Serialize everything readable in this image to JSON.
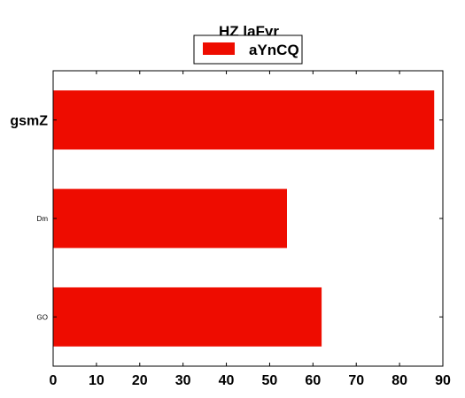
{
  "chart_data": {
    "type": "bar",
    "orientation": "horizontal",
    "title": "HZ laFyr",
    "categories": [
      "gsmZ",
      "Dm",
      "GO"
    ],
    "series": [
      {
        "name": "aYnCQ",
        "values": [
          88,
          54,
          62
        ],
        "color": "#ee0c00"
      }
    ],
    "xlim": [
      0,
      90
    ],
    "xticks": [
      0,
      10,
      20,
      30,
      40,
      50,
      60,
      70,
      80,
      90
    ],
    "grid": false,
    "legend_position": "top-center"
  }
}
